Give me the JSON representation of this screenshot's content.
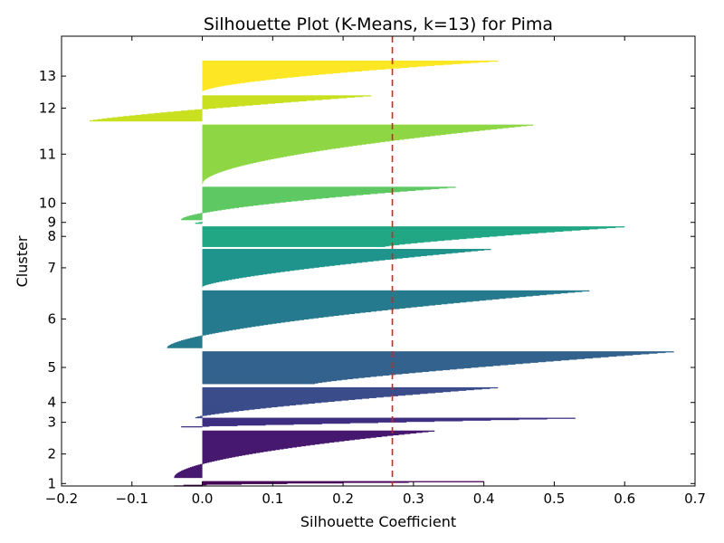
{
  "chart_data": {
    "type": "bar",
    "orientation": "horizontal",
    "title": "Silhouette Plot (K-Means, k=13) for Pima",
    "xlabel": "Silhouette Coefficient",
    "ylabel": "Cluster",
    "xlim": [
      -0.2,
      0.7
    ],
    "xticks": [
      "−0.2",
      "−0.1",
      "0.0",
      "0.1",
      "0.2",
      "0.3",
      "0.4",
      "0.5",
      "0.6",
      "0.7"
    ],
    "grid": false,
    "reference_line": {
      "x": 0.27,
      "style": "dashed",
      "color": "#e41a1c"
    },
    "clusters": [
      {
        "label": "1",
        "color": "#440154",
        "start": 0,
        "size": 8,
        "max": 0.4,
        "min": -0.04,
        "shape": 1.8
      },
      {
        "label": "2",
        "color": "#46186f",
        "start": 14,
        "size": 77,
        "max": 0.33,
        "min": -0.04,
        "shape": 1.8
      },
      {
        "label": "3",
        "color": "#3f2f81",
        "start": 97,
        "size": 15,
        "max": 0.53,
        "min": -0.03,
        "shape": 1.0
      },
      {
        "label": "4",
        "color": "#3b4c8a",
        "start": 112,
        "size": 50,
        "max": 0.42,
        "min": -0.01,
        "shape": 1.3
      },
      {
        "label": "5",
        "color": "#33638d",
        "start": 168,
        "size": 53,
        "max": 0.67,
        "min": 0.16,
        "shape": 1.2
      },
      {
        "label": "6",
        "color": "#277a8e",
        "start": 227,
        "size": 94,
        "max": 0.55,
        "min": -0.05,
        "shape": 1.6
      },
      {
        "label": "7",
        "color": "#1f948c",
        "start": 327,
        "size": 62,
        "max": 0.41,
        "min": 0.0,
        "shape": 1.4
      },
      {
        "label": "8",
        "color": "#22a785",
        "start": 393,
        "size": 33,
        "max": 0.6,
        "min": 0.26,
        "shape": 1.2
      },
      {
        "label": "9",
        "color": "#2eb37c",
        "start": 431,
        "size": 3,
        "max": 0.0,
        "min": -0.01,
        "shape": 1.0
      },
      {
        "label": "10",
        "color": "#5ec962",
        "start": 437,
        "size": 54,
        "max": 0.36,
        "min": -0.03,
        "shape": 1.6
      },
      {
        "label": "11",
        "color": "#8fd744",
        "start": 496,
        "size": 97,
        "max": 0.47,
        "min": 0.0,
        "shape": 1.8
      },
      {
        "label": "12",
        "color": "#c8e020",
        "start": 599,
        "size": 42,
        "max": 0.24,
        "min": -0.16,
        "shape": 1.2
      },
      {
        "label": "13",
        "color": "#fde725",
        "start": 647,
        "size": 51,
        "max": 0.42,
        "min": 0.0,
        "shape": 1.6
      }
    ]
  }
}
